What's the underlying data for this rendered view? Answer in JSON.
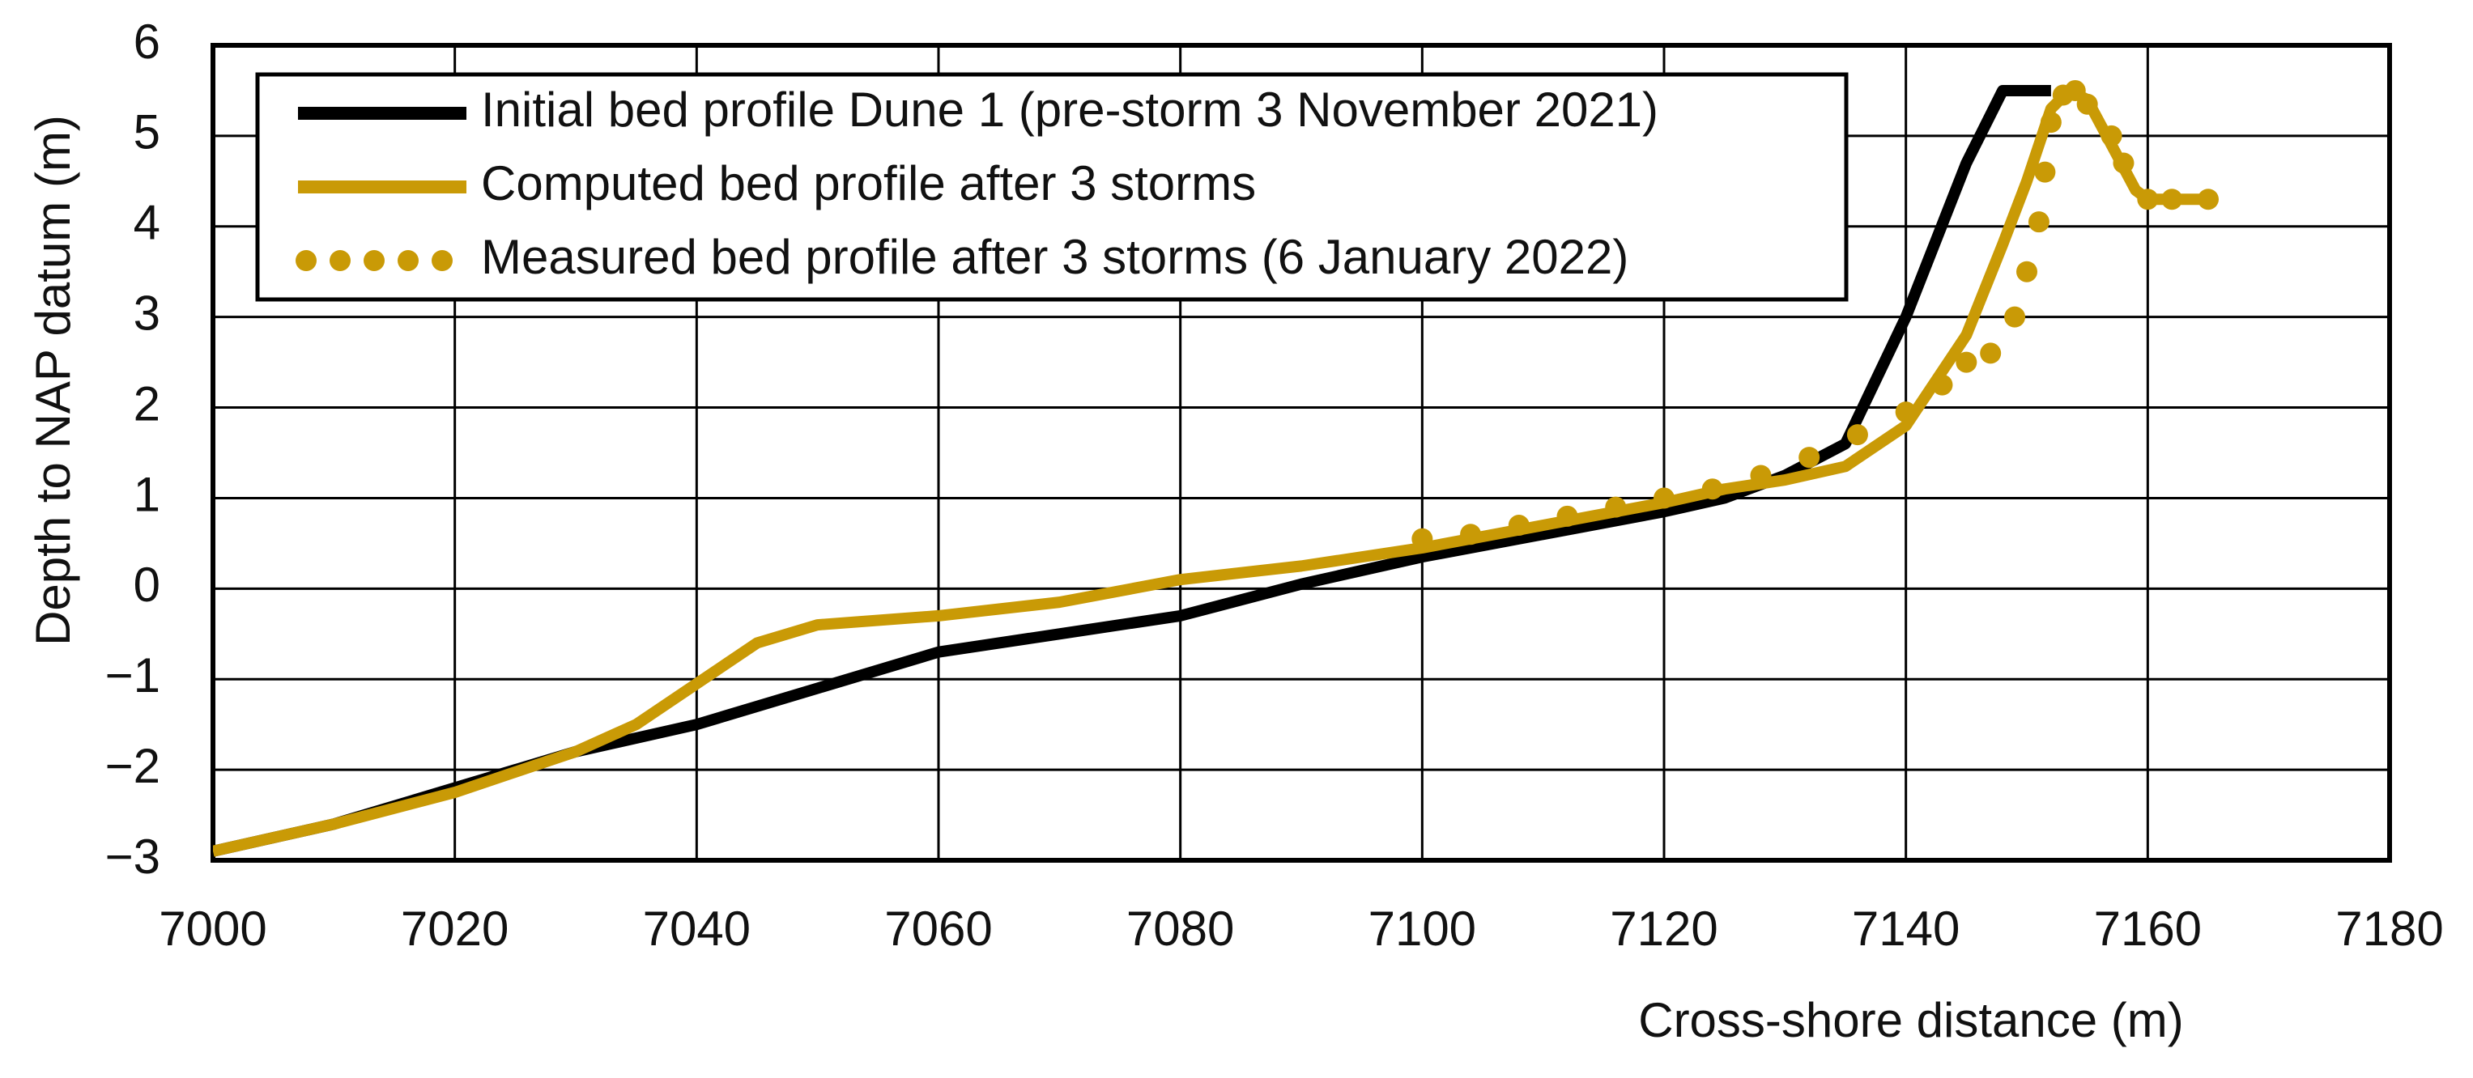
{
  "chart_data": {
    "type": "line",
    "xlabel": "Cross-shore distance (m)",
    "ylabel": "Depth to NAP datum (m)",
    "xlim": [
      7000,
      7180
    ],
    "xticks": [
      7000,
      7020,
      7040,
      7060,
      7080,
      7100,
      7120,
      7140,
      7160,
      7180
    ],
    "ylim": [
      -3,
      6
    ],
    "yticks": [
      {
        "value": -3,
        "label": "−3"
      },
      {
        "value": -2,
        "label": "−2"
      },
      {
        "value": -1,
        "label": "−1"
      },
      0,
      1,
      2,
      3,
      4,
      5,
      6
    ],
    "grid": true,
    "legend": "top-left",
    "series": [
      {
        "name": "Initial bed profile Dune 1 (pre-storm 3 November 2021)",
        "color": "#000000",
        "style": "line",
        "x": [
          7000,
          7010,
          7020,
          7030,
          7040,
          7050,
          7060,
          7070,
          7080,
          7090,
          7100,
          7110,
          7120,
          7125,
          7130,
          7135,
          7140,
          7145,
          7148,
          7152
        ],
        "values": [
          -2.9,
          -2.6,
          -2.2,
          -1.8,
          -1.5,
          -1.1,
          -0.7,
          -0.5,
          -0.3,
          0.05,
          0.35,
          0.6,
          0.85,
          1.0,
          1.25,
          1.6,
          3.0,
          4.7,
          5.5,
          5.5
        ]
      },
      {
        "name": "Computed bed profile after 3 storms",
        "color": "#c99a06",
        "style": "line",
        "x": [
          7000,
          7010,
          7020,
          7030,
          7035,
          7040,
          7045,
          7050,
          7060,
          7070,
          7080,
          7090,
          7100,
          7110,
          7120,
          7125,
          7130,
          7135,
          7140,
          7145,
          7148,
          7150,
          7152,
          7153.5,
          7155,
          7157,
          7159,
          7160,
          7165
        ],
        "values": [
          -2.9,
          -2.6,
          -2.25,
          -1.8,
          -1.5,
          -1.05,
          -0.6,
          -0.4,
          -0.3,
          -0.15,
          0.1,
          0.25,
          0.45,
          0.7,
          0.95,
          1.1,
          1.2,
          1.35,
          1.8,
          2.8,
          3.8,
          4.5,
          5.3,
          5.5,
          5.4,
          4.9,
          4.4,
          4.3,
          4.3
        ]
      },
      {
        "name": "Measured bed profile after 3 storms (6 January 2022)",
        "color": "#c99a06",
        "style": "dots",
        "x": [
          7100,
          7104,
          7108,
          7112,
          7116,
          7120,
          7124,
          7128,
          7132,
          7136,
          7140,
          7143,
          7145,
          7147,
          7149,
          7150,
          7151,
          7151.5,
          7152,
          7153,
          7154,
          7155,
          7157,
          7158,
          7160,
          7162,
          7165
        ],
        "values": [
          0.55,
          0.6,
          0.7,
          0.8,
          0.9,
          1.0,
          1.1,
          1.25,
          1.45,
          1.7,
          1.95,
          2.25,
          2.5,
          2.6,
          3.0,
          3.5,
          4.05,
          4.6,
          5.15,
          5.45,
          5.5,
          5.35,
          5.0,
          4.7,
          4.3,
          4.3,
          4.3
        ]
      }
    ]
  }
}
